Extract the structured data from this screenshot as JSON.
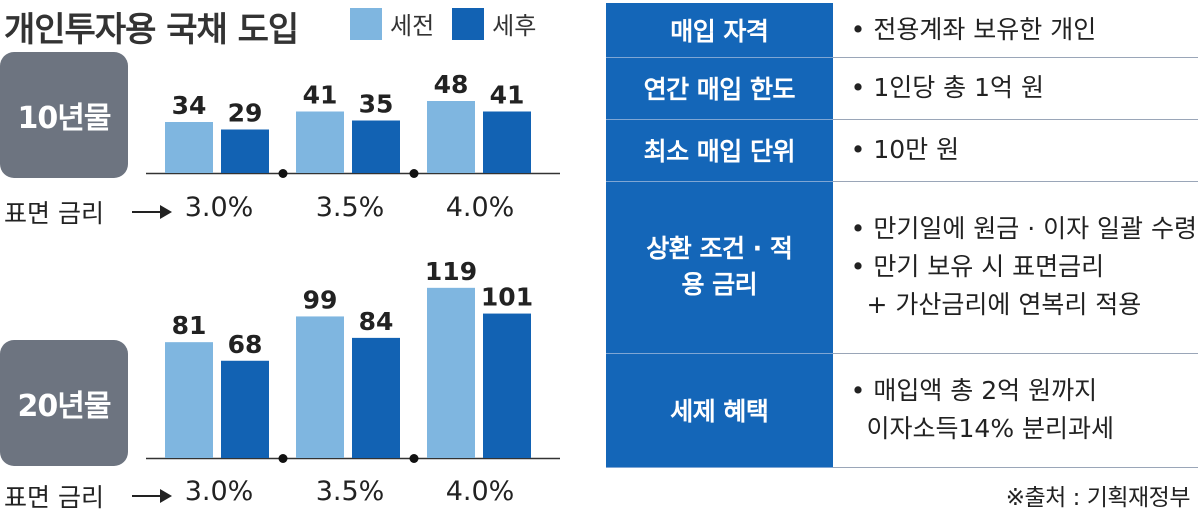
{
  "title": "개인투자용 국채 도입",
  "legend": {
    "pre_tax": "세전",
    "post_tax": "세후",
    "colors": {
      "pre_tax": "#7fb6e0",
      "post_tax": "#1262b3"
    }
  },
  "chart_data": [
    {
      "type": "bar",
      "panel": "10년물",
      "categories": [
        "3.0%",
        "3.5%",
        "4.0%"
      ],
      "series": [
        {
          "name": "세전",
          "values": [
            34,
            41,
            48
          ]
        },
        {
          "name": "세후",
          "values": [
            29,
            35,
            41
          ]
        }
      ],
      "xlabel": "표면 금리",
      "ylim": [
        0,
        60
      ]
    },
    {
      "type": "bar",
      "panel": "20년물",
      "categories": [
        "3.0%",
        "3.5%",
        "4.0%"
      ],
      "series": [
        {
          "name": "세전",
          "values": [
            81,
            99,
            119
          ]
        },
        {
          "name": "세후",
          "values": [
            68,
            84,
            101
          ]
        }
      ],
      "xlabel": "표면 금리",
      "ylim": [
        0,
        150
      ]
    }
  ],
  "info_table": {
    "rows": [
      {
        "label": "매입 자격",
        "lines": [
          "• 전용계좌 보유한 개인"
        ]
      },
      {
        "label": "연간 매입 한도",
        "lines": [
          "• 1인당 총 1억 원"
        ]
      },
      {
        "label": "최소 매입 단위",
        "lines": [
          "• 10만 원"
        ]
      },
      {
        "label": "상환 조건 · 적용 금리",
        "lines": [
          "• 만기일에 원금 · 이자 일괄 수령",
          "• 만기 보유 시 표면금리",
          "  + 가산금리에 연복리 적용"
        ]
      },
      {
        "label": "세제 혜택",
        "lines": [
          "• 매입액 총 2억 원까지",
          "  이자소득14% 분리과세"
        ]
      }
    ]
  },
  "source": "※출처 : 기획재정부"
}
